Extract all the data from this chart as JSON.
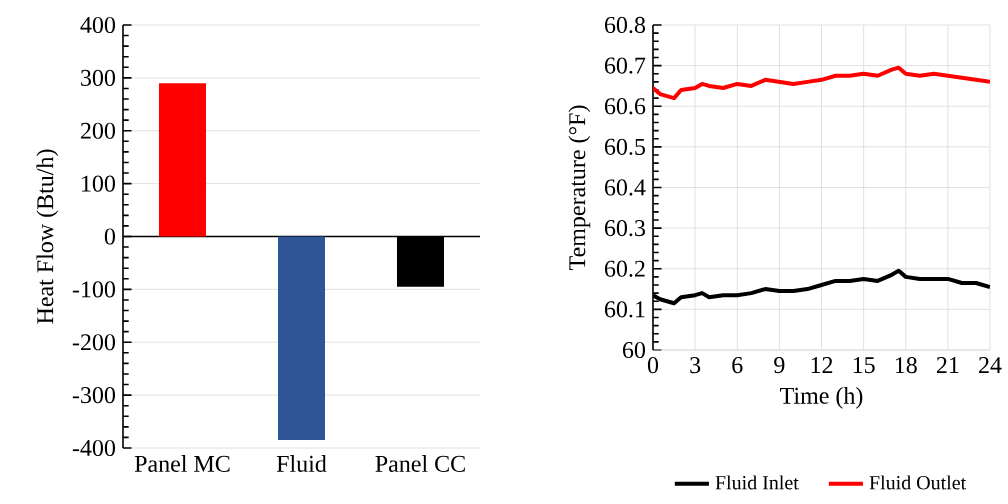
{
  "chart_data": [
    {
      "type": "bar",
      "ylabel": "Heat Flow (Btu/h)",
      "categories": [
        "Panel MC",
        "Fluid",
        "Panel CC"
      ],
      "values": [
        290,
        -385,
        -95
      ],
      "colors": [
        "#ff0000",
        "#2f5597",
        "#000000"
      ],
      "ylim": [
        -400,
        400
      ],
      "yticks": [
        -400,
        -300,
        -200,
        -100,
        0,
        100,
        200,
        300,
        400
      ],
      "grid": "y"
    },
    {
      "type": "line",
      "xlabel": "Time (h)",
      "ylabel": "Temperature (°F)",
      "xlim": [
        0,
        24
      ],
      "xticks": [
        0,
        3,
        6,
        9,
        12,
        15,
        18,
        21,
        24
      ],
      "ylim": [
        60,
        60.8
      ],
      "yticks": [
        60,
        60.1,
        60.2,
        60.3,
        60.4,
        60.5,
        60.6,
        60.7,
        60.8
      ],
      "grid": true,
      "legend": "bottom",
      "x": [
        0,
        0.5,
        1,
        1.5,
        2,
        3,
        3.5,
        4,
        5,
        6,
        7,
        8,
        9,
        10,
        11,
        12,
        13,
        14,
        15,
        16,
        17,
        17.5,
        18,
        19,
        20,
        21,
        22,
        23,
        24
      ],
      "series": [
        {
          "name": "Fluid Inlet",
          "color": "#000000",
          "values": [
            60.135,
            60.125,
            60.12,
            60.115,
            60.13,
            60.135,
            60.14,
            60.13,
            60.135,
            60.135,
            60.14,
            60.15,
            60.145,
            60.145,
            60.15,
            60.16,
            60.17,
            60.17,
            60.175,
            60.17,
            60.185,
            60.195,
            60.18,
            60.175,
            60.175,
            60.175,
            60.165,
            60.165,
            60.155
          ]
        },
        {
          "name": "Fluid Outlet",
          "color": "#ff0000",
          "values": [
            60.645,
            60.63,
            60.625,
            60.62,
            60.64,
            60.645,
            60.655,
            60.65,
            60.645,
            60.655,
            60.65,
            60.665,
            60.66,
            60.655,
            60.66,
            60.665,
            60.675,
            60.675,
            60.68,
            60.675,
            60.69,
            60.695,
            60.68,
            60.675,
            60.68,
            60.675,
            60.67,
            60.665,
            60.66
          ]
        }
      ]
    }
  ]
}
